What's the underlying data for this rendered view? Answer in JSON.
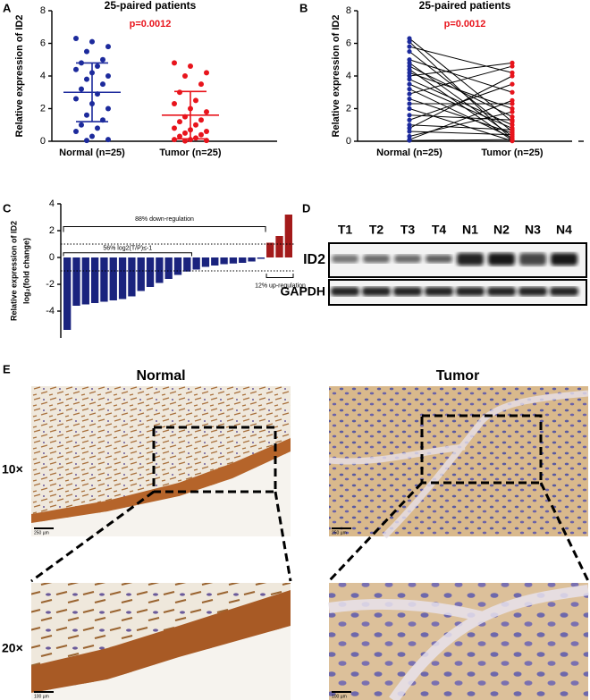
{
  "chart_data": [
    {
      "type": "dot",
      "panel": "A",
      "title": "25-paired patients",
      "annotation": "p=0.0012",
      "annotation_color": "#e8141c",
      "ylabel": "Relative expression of ID2",
      "categories": [
        "Normal (n=25)",
        "Tumor (n=25)"
      ],
      "groups": [
        {
          "color": "#1c2a9c",
          "values": [
            6.3,
            6.1,
            5.8,
            5.5,
            5.0,
            4.8,
            4.6,
            4.4,
            4.2,
            4.0,
            3.8,
            3.5,
            3.2,
            2.9,
            2.6,
            2.3,
            2.0,
            1.6,
            1.3,
            1.0,
            0.8,
            0.6,
            0.3,
            0.1,
            0.05
          ],
          "mean": 3.0,
          "sd": 1.8
        },
        {
          "color": "#e8141c",
          "values": [
            4.8,
            4.6,
            4.2,
            4.0,
            3.5,
            3.0,
            2.5,
            2.3,
            2.0,
            1.8,
            1.5,
            1.3,
            1.2,
            1.0,
            0.8,
            0.7,
            0.6,
            0.5,
            0.4,
            0.3,
            0.2,
            0.1,
            0.1,
            0.05,
            0.02
          ],
          "mean": 1.6,
          "sd": 1.45
        }
      ],
      "ylim": [
        0,
        8
      ],
      "yticks": [
        0,
        2,
        4,
        6,
        8
      ]
    },
    {
      "type": "paired",
      "panel": "B",
      "title": "25-paired patients",
      "annotation": "p=0.0012",
      "annotation_color": "#e8141c",
      "ylabel": "Relative expression of ID2",
      "categories": [
        "Normal (n=25)",
        "Tumor (n=25)"
      ],
      "line_color": "#000000",
      "groups": [
        {
          "color": "#1c2a9c",
          "values": [
            6.3,
            6.1,
            5.8,
            5.5,
            5.0,
            4.8,
            4.6,
            4.4,
            4.2,
            4.0,
            3.8,
            3.5,
            3.2,
            2.9,
            2.6,
            2.3,
            2.0,
            1.6,
            1.3,
            1.0,
            0.8,
            0.6,
            0.3,
            0.1,
            0.05
          ]
        },
        {
          "color": "#e8141c",
          "values": [
            1.2,
            0.1,
            4.2,
            0.6,
            3.0,
            0.3,
            1.5,
            0.05,
            2.0,
            4.8,
            1.0,
            0.8,
            0.2,
            4.6,
            0.5,
            2.3,
            0.02,
            1.3,
            3.5,
            0.7,
            4.0,
            0.4,
            1.8,
            2.5,
            0.1
          ]
        }
      ],
      "ylim": [
        0,
        8
      ],
      "yticks": [
        0,
        2,
        4,
        6,
        8
      ]
    },
    {
      "type": "waterfall",
      "panel": "C",
      "ylabel": [
        "Relative expression of ID2",
        "log₂(fold change)"
      ],
      "values": [
        -5.4,
        -3.6,
        -3.5,
        -3.4,
        -3.3,
        -3.2,
        -3.1,
        -2.9,
        -2.5,
        -2.2,
        -1.9,
        -1.6,
        -1.3,
        -1.05,
        -0.9,
        -0.7,
        -0.6,
        -0.5,
        -0.45,
        -0.4,
        -0.3,
        -0.1,
        1.1,
        1.6,
        3.2
      ],
      "color_down": "#1a237e",
      "color_up": "#a31a1a",
      "ylim": [
        -6,
        4
      ],
      "yticks": [
        4,
        2,
        0,
        -2,
        -4
      ],
      "reference_lines": [
        1,
        -1
      ],
      "annotations": [
        "88% down-regulation",
        "56% log2(T/P)≤-1",
        "12% up-regulation"
      ]
    }
  ],
  "blot": {
    "panel": "D",
    "lanes": [
      "T1",
      "T2",
      "T3",
      "T4",
      "N1",
      "N2",
      "N3",
      "N4"
    ],
    "rows": [
      "ID2",
      "GAPDH"
    ]
  },
  "ihc": {
    "panel": "E",
    "columns": [
      "Normal",
      "Tumor"
    ],
    "rows": [
      "10×",
      "20×"
    ],
    "scale_bars": [
      "250 µm",
      "100 µm"
    ]
  }
}
